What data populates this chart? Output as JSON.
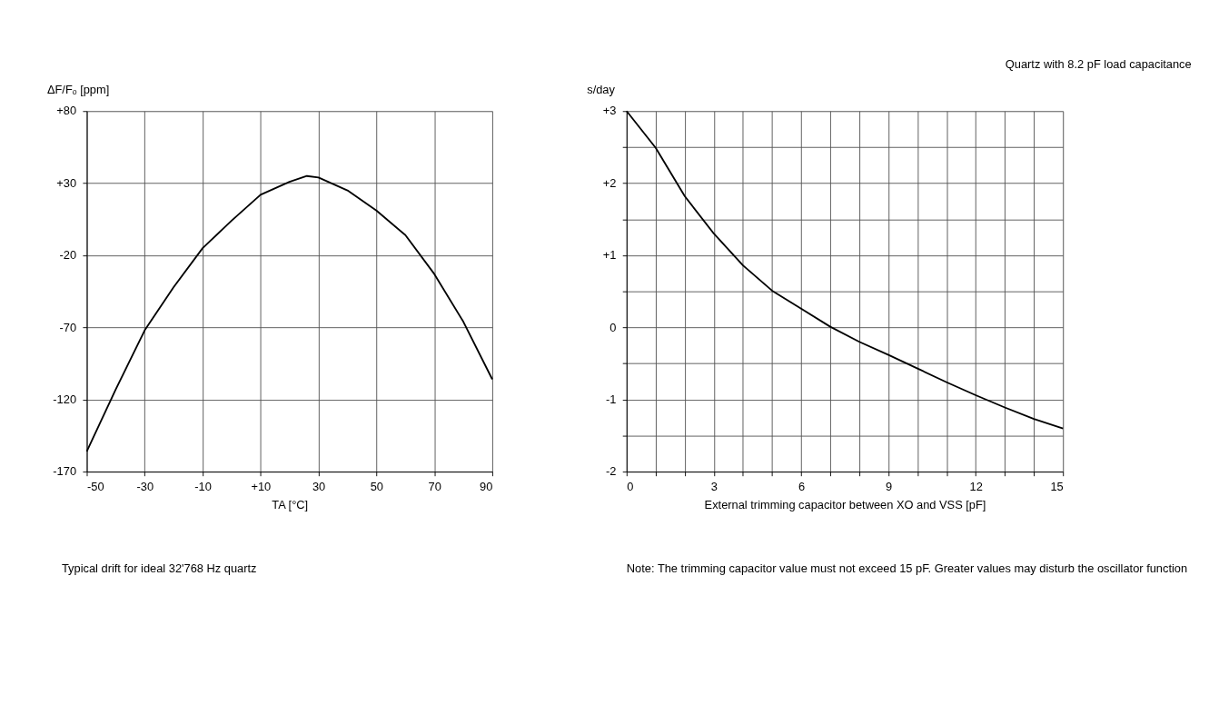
{
  "chart_data": [
    {
      "type": "line",
      "ylabel": "ΔF/Fₒ [ppm]",
      "xlabel": "TA [°C]",
      "x": [
        -50,
        -40,
        -30,
        -20,
        -10,
        0,
        10,
        20,
        26,
        30,
        40,
        50,
        60,
        70,
        80,
        90
      ],
      "series": [
        {
          "color": "#000000",
          "values": [
            -156,
            -113,
            -72,
            -42,
            -15,
            4,
            22,
            31,
            35,
            34,
            25,
            11,
            -6,
            -33,
            -66,
            -106
          ]
        }
      ],
      "xlim": [
        -50,
        90
      ],
      "xticks": [
        -50,
        -30,
        -10,
        {
          "value": 10,
          "label": "+10"
        },
        30,
        50,
        70,
        90
      ],
      "ylim": [
        -170,
        80
      ],
      "yticks": [
        -170,
        -120,
        -70,
        -20,
        {
          "value": 30,
          "label": "+30"
        },
        {
          "value": 80,
          "label": "+80"
        }
      ],
      "grid": true,
      "marker": "none",
      "line_style": "solid",
      "annotations": [
        "Typical drift for ideal 32'768 Hz quartz"
      ]
    },
    {
      "type": "line",
      "title": "Quartz with 8.2 pF load capacitance",
      "ylabel": "s/day",
      "xlabel": "External trimming capacitor between XO and VSS [pF]",
      "x": [
        0,
        1,
        2,
        3,
        4,
        5,
        6,
        7,
        8,
        9,
        10,
        11,
        12,
        13,
        14,
        15
      ],
      "series": [
        {
          "color": "#000000",
          "values": [
            3,
            2.49,
            1.82,
            1.3,
            0.86,
            0.51,
            0.26,
            0.01,
            -0.2,
            -0.38,
            -0.57,
            -0.76,
            -0.94,
            -1.11,
            -1.27,
            -1.4
          ]
        }
      ],
      "xlim": [
        0,
        15
      ],
      "xticks": [
        0,
        {
          "value": 1,
          "label": null
        },
        {
          "value": 2,
          "label": null
        },
        3,
        {
          "value": 4,
          "label": null
        },
        {
          "value": 5,
          "label": null
        },
        6,
        {
          "value": 7,
          "label": null
        },
        {
          "value": 8,
          "label": null
        },
        9,
        {
          "value": 10,
          "label": null
        },
        {
          "value": 11,
          "label": null
        },
        12,
        {
          "value": 13,
          "label": null
        },
        {
          "value": 14,
          "label": null
        },
        15
      ],
      "ylim": [
        -2,
        3
      ],
      "yticks": [
        -2,
        {
          "value": -1.5,
          "label": null
        },
        -1,
        {
          "value": -0.5,
          "label": null
        },
        0,
        {
          "value": 0.5,
          "label": null
        },
        {
          "value": 1,
          "label": "+1"
        },
        {
          "value": 1.5,
          "label": null
        },
        {
          "value": 2,
          "label": "+2"
        },
        {
          "value": 2.5,
          "label": null
        },
        {
          "value": 3,
          "label": "+3"
        }
      ],
      "grid": true,
      "marker": "none",
      "line_style": "solid",
      "annotations": [
        "Note: The trimming capacitor value must not exceed 15 pF.  Greater values may disturb the oscillator function"
      ]
    }
  ]
}
